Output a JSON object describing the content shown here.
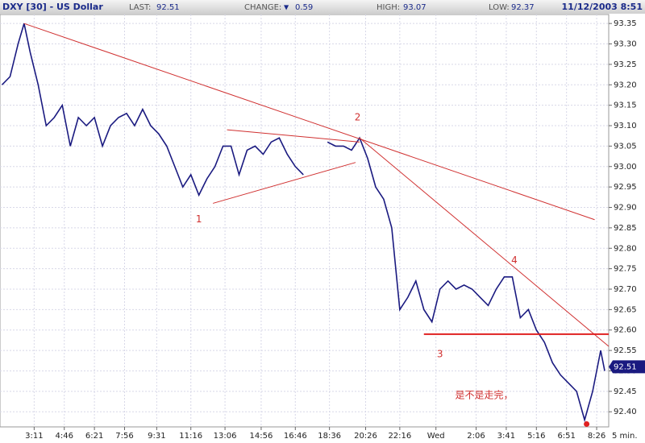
{
  "header": {
    "title": "DXY [30] - US Dollar",
    "last_label": "LAST:",
    "last": 92.51,
    "change_label": "CHANGE:",
    "change_arrow": "▼",
    "change": 0.59,
    "high_label": "HIGH:",
    "high": 93.07,
    "low_label": "LOW:",
    "low": 92.37,
    "datetime": "11/12/2003 8:51"
  },
  "chart_data": {
    "type": "line",
    "interval": "5 min.",
    "color": "#1a1a80",
    "grid": true,
    "x": [
      0,
      4,
      8,
      11,
      14,
      18,
      22,
      26,
      30,
      34,
      38,
      42,
      46,
      50,
      54,
      58,
      62,
      66,
      70,
      74,
      78,
      82,
      86,
      90,
      94,
      98,
      102,
      106,
      110,
      114,
      118,
      122,
      126,
      130,
      134,
      138,
      142,
      146,
      150,
      154,
      162,
      166,
      170,
      174,
      178,
      182,
      186,
      190,
      194,
      196,
      198,
      202,
      206,
      210,
      214,
      218,
      222,
      226,
      230,
      234,
      238,
      242,
      246,
      250,
      254,
      258,
      262,
      266,
      270,
      274,
      278,
      282,
      286,
      290,
      294,
      298,
      300
    ],
    "values": [
      93.2,
      93.22,
      93.3,
      93.35,
      93.28,
      93.2,
      93.1,
      93.12,
      93.15,
      93.05,
      93.12,
      93.1,
      93.12,
      93.05,
      93.1,
      93.12,
      93.13,
      93.1,
      93.14,
      93.1,
      93.08,
      93.05,
      93.0,
      92.95,
      92.98,
      92.93,
      92.97,
      93.0,
      93.05,
      93.05,
      92.98,
      93.04,
      93.05,
      93.03,
      93.06,
      93.07,
      93.03,
      93.0,
      92.98,
      null,
      93.06,
      93.05,
      93.05,
      93.04,
      93.07,
      93.02,
      92.95,
      92.92,
      92.85,
      92.75,
      92.65,
      92.68,
      92.72,
      92.65,
      92.62,
      92.7,
      92.72,
      92.7,
      92.71,
      92.7,
      92.68,
      92.66,
      92.7,
      92.73,
      92.73,
      92.63,
      92.65,
      92.6,
      92.57,
      92.52,
      92.49,
      92.47,
      92.45,
      92.38,
      92.45,
      92.55,
      92.5
    ],
    "xlim": [
      -1,
      302
    ],
    "xticks": [
      {
        "value": 16,
        "label": "3:11"
      },
      {
        "value": 31,
        "label": "4:46"
      },
      {
        "value": 46,
        "label": "6:21"
      },
      {
        "value": 61,
        "label": "7:56"
      },
      {
        "value": 77,
        "label": "9:31"
      },
      {
        "value": 94,
        "label": "11:16"
      },
      {
        "value": 111,
        "label": "13:06"
      },
      {
        "value": 129,
        "label": "14:56"
      },
      {
        "value": 146,
        "label": "16:46"
      },
      {
        "value": 163,
        "label": "18:36"
      },
      {
        "value": 181,
        "label": "20:26"
      },
      {
        "value": 198,
        "label": "22:16"
      },
      {
        "value": 216,
        "label": "Wed"
      },
      {
        "value": 236,
        "label": "2:06"
      },
      {
        "value": 251,
        "label": "3:41"
      },
      {
        "value": 266,
        "label": "5:16"
      },
      {
        "value": 281,
        "label": "6:51"
      },
      {
        "value": 296,
        "label": "8:26"
      }
    ],
    "ylim": [
      92.363,
      93.372
    ],
    "yticks": [
      {
        "value": 92.4,
        "label": "92.40"
      },
      92.45,
      {
        "value": 92.5,
        "label": "92.50"
      },
      92.55,
      {
        "value": 92.6,
        "label": "92.60"
      },
      92.65,
      {
        "value": 92.7,
        "label": "92.70"
      },
      92.75,
      {
        "value": 92.8,
        "label": "92.80"
      },
      92.85,
      {
        "value": 92.9,
        "label": "92.90"
      },
      92.95,
      {
        "value": 93.0,
        "label": "93.00"
      },
      93.05,
      {
        "value": 93.1,
        "label": "93.10"
      },
      93.15,
      {
        "value": 93.2,
        "label": "93.20"
      },
      93.25,
      {
        "value": 93.3,
        "label": "93.30"
      },
      93.35
    ],
    "trendlines": [
      {
        "x": [
          11,
          295
        ],
        "y": [
          93.35,
          92.87
        ],
        "color": "#d03030",
        "width": 1
      },
      {
        "x": [
          105,
          176
        ],
        "y": [
          92.91,
          93.01
        ],
        "color": "#d03030",
        "width": 1
      },
      {
        "x": [
          112,
          178
        ],
        "y": [
          93.09,
          93.06
        ],
        "color": "#d03030",
        "width": 1
      },
      {
        "x": [
          178,
          302
        ],
        "y": [
          93.07,
          92.56
        ],
        "color": "#d03030",
        "width": 1
      },
      {
        "x": [
          210,
          302
        ],
        "y": [
          92.59,
          92.59
        ],
        "color": "#e02020",
        "width": 2
      }
    ],
    "annotations": [
      {
        "text": "1",
        "x": 98,
        "y": 92.87
      },
      {
        "text": "2",
        "x": 177,
        "y": 93.12
      },
      {
        "text": "3",
        "x": 218,
        "y": 92.54
      },
      {
        "text": "4",
        "x": 255,
        "y": 92.77
      },
      {
        "text": "是不是走完，",
        "x": 240,
        "y": 92.44
      }
    ],
    "marker": {
      "x": 291,
      "y": 92.37,
      "color": "#e02020"
    }
  }
}
